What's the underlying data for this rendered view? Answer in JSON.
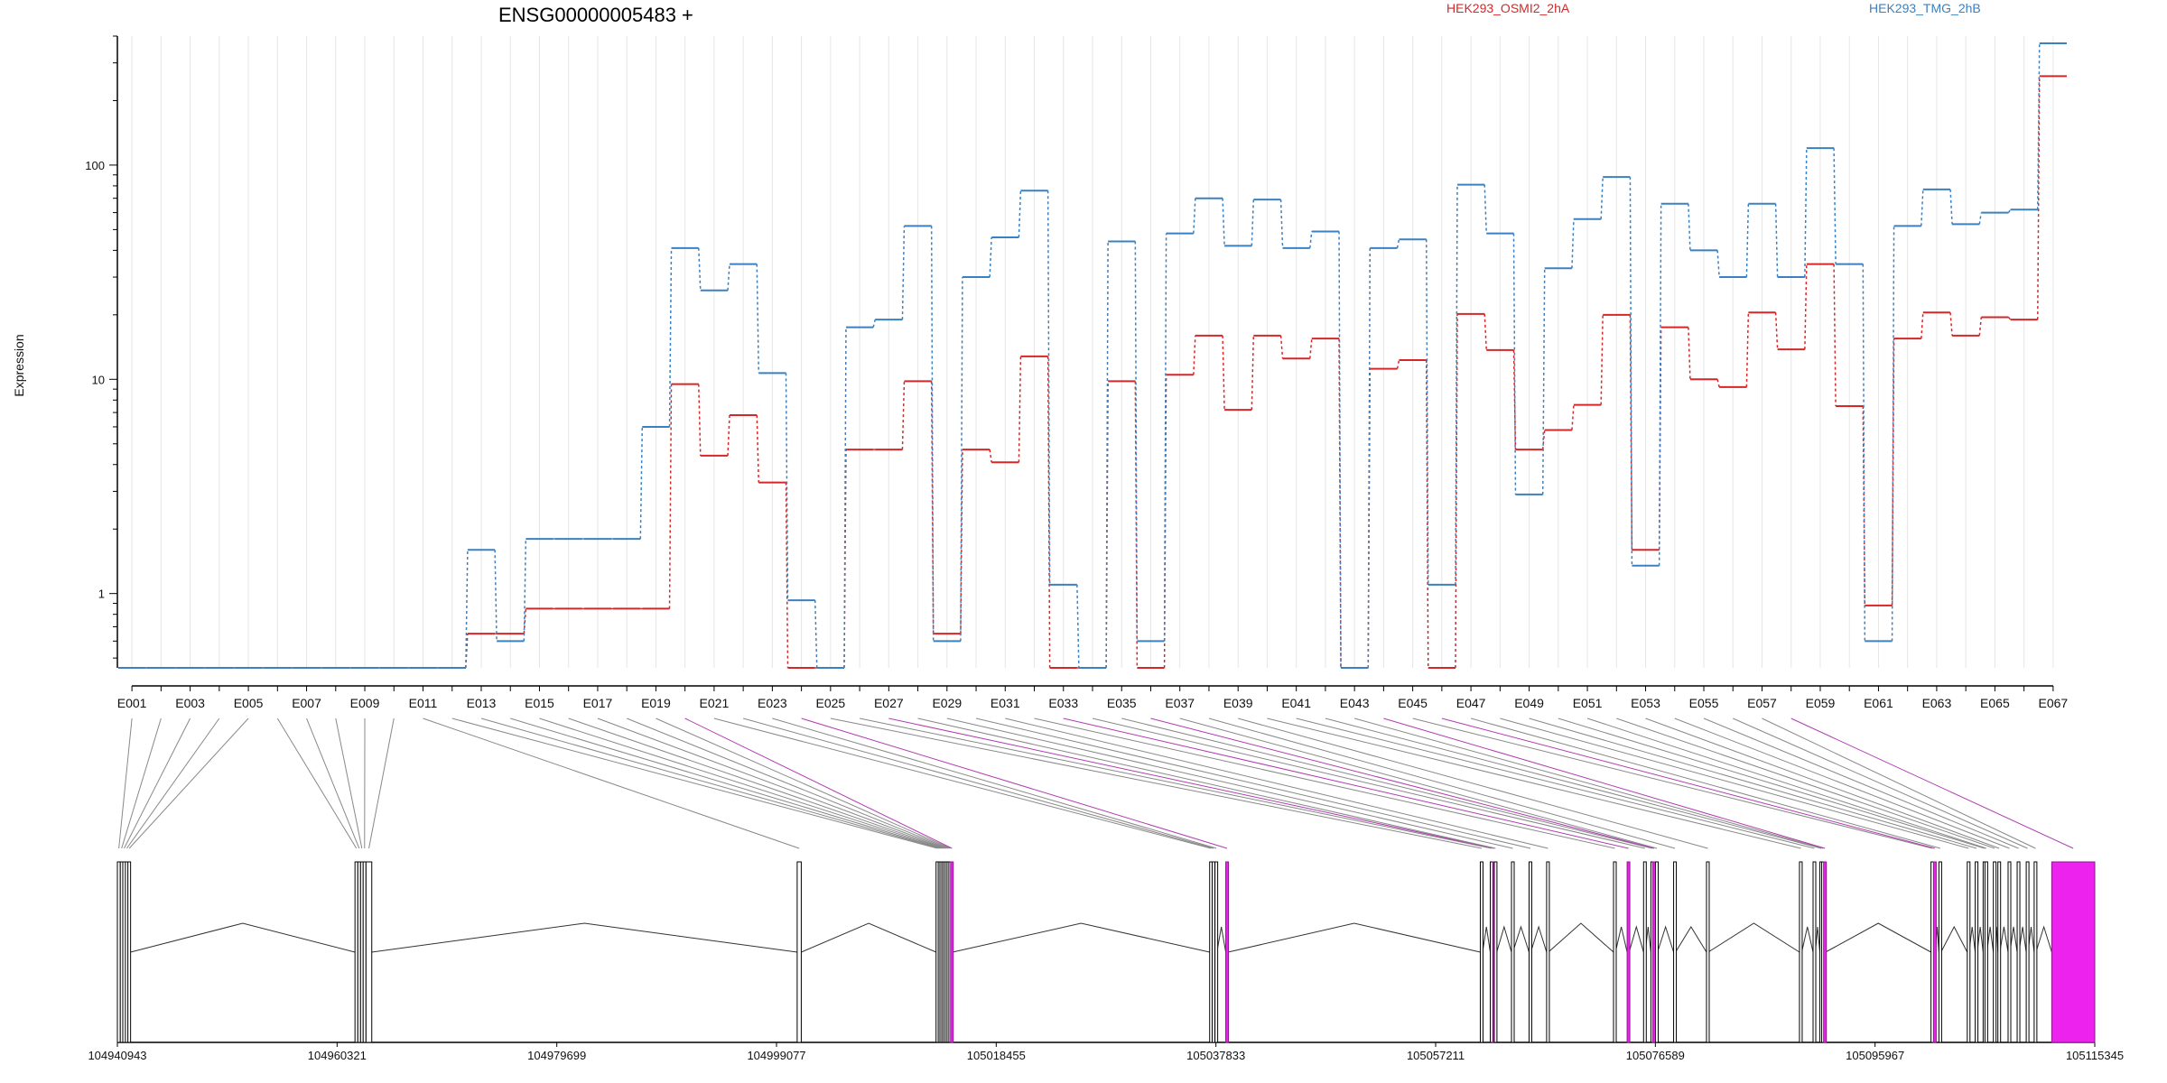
{
  "chart_data": {
    "type": "line",
    "title": "ENSG00000005483 +",
    "ylabel": "Expression",
    "yscale": "log",
    "ylim": [
      0.45,
      400
    ],
    "yticks": [
      "1",
      "10",
      "100"
    ],
    "grid": true,
    "colors": {
      "OSMI2": "#d62728",
      "TMG": "#3b80c0",
      "highlight": "#ee22ee",
      "connector": "#888888"
    },
    "series": [
      {
        "name": "HEK293_OSMI2_2hA",
        "color": "#d62728",
        "values": [
          0.45,
          0.45,
          0.45,
          0.45,
          0.45,
          0.45,
          0.45,
          0.45,
          0.45,
          0.45,
          0.45,
          0.45,
          0.65,
          0.65,
          0.85,
          0.85,
          0.85,
          0.85,
          0.85,
          9.5,
          4.4,
          6.8,
          3.3,
          0.45,
          0.45,
          4.7,
          4.7,
          9.8,
          0.65,
          4.7,
          4.1,
          12.8,
          0.45,
          0.45,
          9.8,
          0.45,
          10.5,
          16,
          7.2,
          16,
          12.5,
          15.5,
          0.45,
          11.2,
          12.3,
          0.45,
          20.2,
          13.7,
          4.7,
          5.8,
          7.6,
          20,
          1.6,
          17.5,
          10,
          9.2,
          20.5,
          13.8,
          34.5,
          7.5,
          0.88,
          15.5,
          20.5,
          16,
          19.5,
          19,
          260
        ]
      },
      {
        "name": "HEK293_TMG_2hB",
        "color": "#3b80c0",
        "values": [
          0.45,
          0.45,
          0.45,
          0.45,
          0.45,
          0.45,
          0.45,
          0.45,
          0.45,
          0.45,
          0.45,
          0.45,
          1.6,
          0.6,
          1.8,
          1.8,
          1.8,
          1.8,
          6,
          41,
          26,
          34.5,
          10.7,
          0.93,
          0.45,
          17.5,
          19,
          52,
          0.6,
          30,
          46,
          76,
          1.1,
          0.45,
          44,
          0.6,
          48,
          70,
          42,
          69,
          41,
          49,
          0.45,
          41,
          45,
          1.1,
          81,
          48,
          2.9,
          33,
          56,
          88,
          1.35,
          66,
          40,
          30,
          66,
          30,
          120,
          34.5,
          0.6,
          52,
          77,
          53,
          60,
          62,
          370
        ]
      }
    ],
    "bin_labels": [
      "E001",
      "E003",
      "E005",
      "E007",
      "E009",
      "E011",
      "E013",
      "E015",
      "E017",
      "E019",
      "E021",
      "E023",
      "E025",
      "E027",
      "E029",
      "E031",
      "E033",
      "E035",
      "E037",
      "E039",
      "E041",
      "E043",
      "E045",
      "E047",
      "E049",
      "E051",
      "E053",
      "E055",
      "E057",
      "E059",
      "E061",
      "E063",
      "E065",
      "E067"
    ],
    "gene_model": {
      "x_ticks": [
        "104940943",
        "104960321",
        "104979699",
        "104999077",
        "105018455",
        "105037833",
        "105057211",
        "105076589",
        "105095967",
        "105115345"
      ],
      "x_range": [
        104940943,
        105115345
      ],
      "exons": [
        {
          "start": 104940943,
          "end": 104941200
        },
        {
          "start": 104941200,
          "end": 104941420
        },
        {
          "start": 104941420,
          "end": 104941650
        },
        {
          "start": 104941650,
          "end": 104941870
        },
        {
          "start": 104941870,
          "end": 104942100
        },
        {
          "start": 104961900,
          "end": 104962150
        },
        {
          "start": 104962150,
          "end": 104962390
        },
        {
          "start": 104962390,
          "end": 104962620
        },
        {
          "start": 104962620,
          "end": 104962870
        },
        {
          "start": 104962870,
          "end": 104963380
        },
        {
          "start": 105000900,
          "end": 105001260
        },
        {
          "start": 105013150,
          "end": 105013340
        },
        {
          "start": 105013340,
          "end": 105013490
        },
        {
          "start": 105013490,
          "end": 105013650
        },
        {
          "start": 105013650,
          "end": 105013800
        },
        {
          "start": 105013800,
          "end": 105013960
        },
        {
          "start": 105013960,
          "end": 105014120
        },
        {
          "start": 105014120,
          "end": 105014280
        },
        {
          "start": 105014280,
          "end": 105014430
        },
        {
          "start": 105014430,
          "end": 105014600,
          "highlight": true
        },
        {
          "start": 105037280,
          "end": 105037450
        },
        {
          "start": 105037500,
          "end": 105037680
        },
        {
          "start": 105037750,
          "end": 105037920
        },
        {
          "start": 105038700,
          "end": 105038900,
          "highlight": true
        },
        {
          "start": 105061150,
          "end": 105061350
        },
        {
          "start": 105062030,
          "end": 105062240
        },
        {
          "start": 105062240,
          "end": 105062380,
          "highlight": true
        },
        {
          "start": 105062380,
          "end": 105062600
        },
        {
          "start": 105063900,
          "end": 105064020
        },
        {
          "start": 105065450,
          "end": 105065600
        },
        {
          "start": 105067000,
          "end": 105067150
        },
        {
          "start": 105072900,
          "end": 105073070
        },
        {
          "start": 105074100,
          "end": 105074280,
          "highlight": true
        },
        {
          "start": 105075550,
          "end": 105075700
        },
        {
          "start": 105076200,
          "end": 105076360
        },
        {
          "start": 105076360,
          "end": 105076530,
          "highlight": true
        },
        {
          "start": 105076600,
          "end": 105076780
        },
        {
          "start": 105078200,
          "end": 105078370
        },
        {
          "start": 105081100,
          "end": 105081250
        },
        {
          "start": 105089300,
          "end": 105089500
        },
        {
          "start": 105090500,
          "end": 105090700
        },
        {
          "start": 105091100,
          "end": 105091260
        },
        {
          "start": 105091260,
          "end": 105091430
        },
        {
          "start": 105091430,
          "end": 105091600,
          "highlight": true
        },
        {
          "start": 105100900,
          "end": 105101120
        },
        {
          "start": 105101120,
          "end": 105101290,
          "highlight": true
        },
        {
          "start": 105101600,
          "end": 105101780
        },
        {
          "start": 105104100,
          "end": 105104260
        },
        {
          "start": 105104800,
          "end": 105104980
        },
        {
          "start": 105105500,
          "end": 105105660
        },
        {
          "start": 105105660,
          "end": 105105830
        },
        {
          "start": 105106400,
          "end": 105106560
        },
        {
          "start": 105106800,
          "end": 105106970
        },
        {
          "start": 105107700,
          "end": 105107860
        },
        {
          "start": 105108500,
          "end": 105108660
        },
        {
          "start": 105109300,
          "end": 105109460
        },
        {
          "start": 105110000,
          "end": 105110160
        },
        {
          "start": 105111550,
          "end": 105115345,
          "highlight": true
        }
      ]
    }
  }
}
